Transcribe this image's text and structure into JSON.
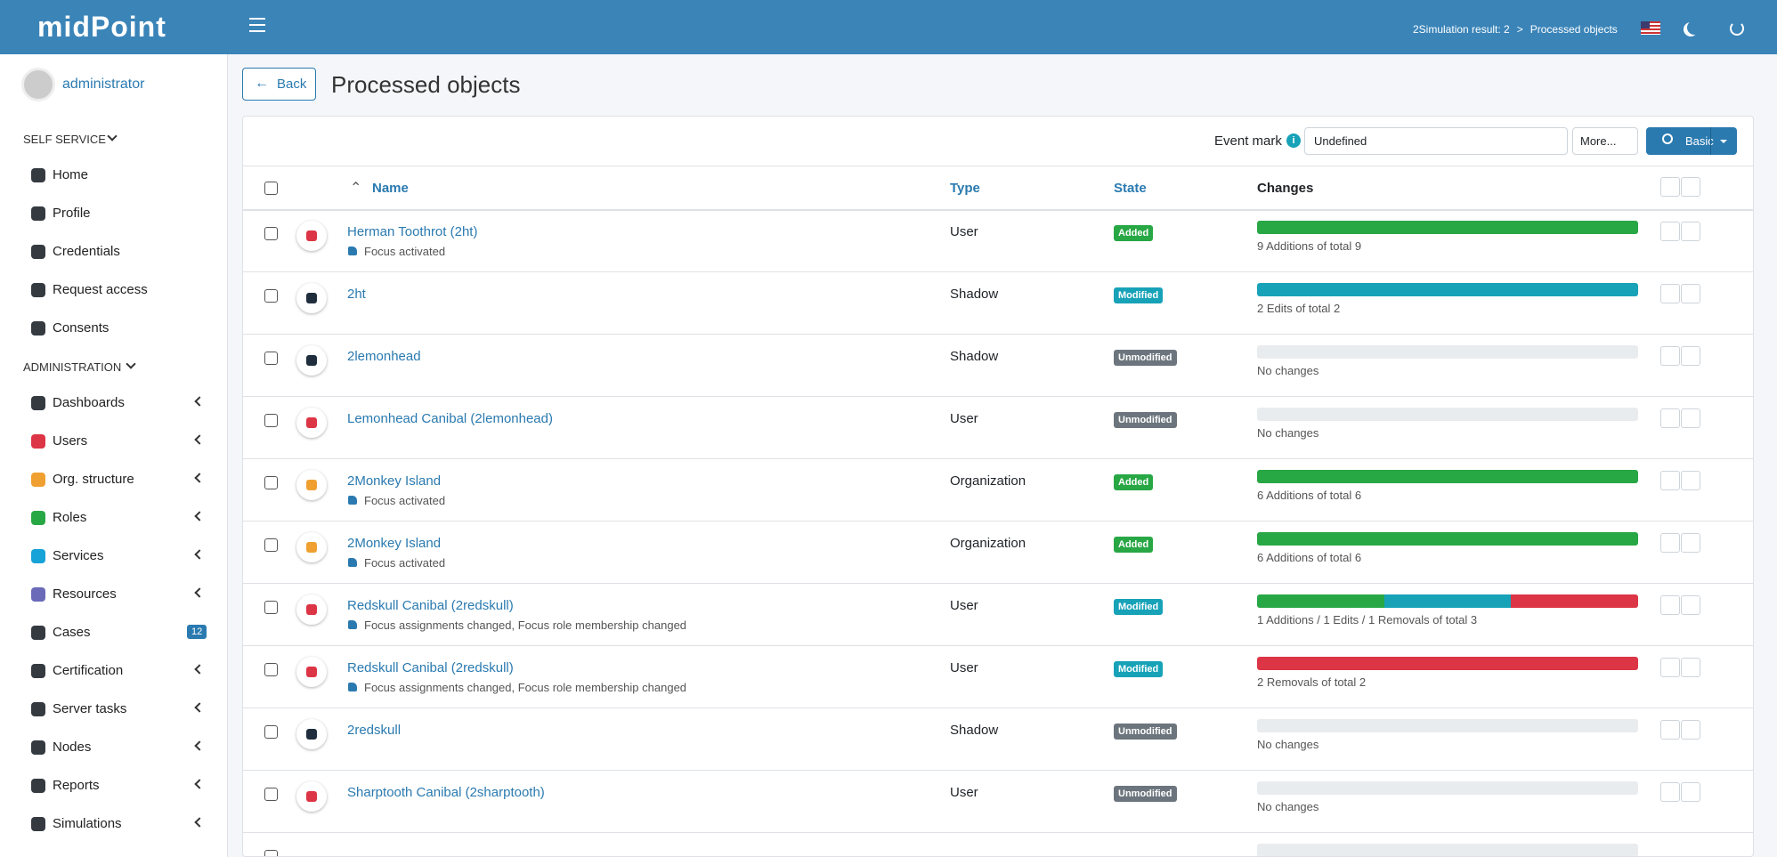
{
  "header": {
    "logo": "midPoint",
    "breadcrumb": {
      "items": [
        "2Simulation result: 2",
        "Processed objects"
      ],
      "separator": ">"
    }
  },
  "sidebar": {
    "user": "administrator",
    "sections": [
      {
        "title": "SELF SERVICE",
        "items": [
          {
            "label": "Home",
            "color": "#343a40"
          },
          {
            "label": "Profile",
            "color": "#343a40"
          },
          {
            "label": "Credentials",
            "color": "#343a40"
          },
          {
            "label": "Request access",
            "color": "#343a40"
          },
          {
            "label": "Consents",
            "color": "#343a40"
          }
        ]
      },
      {
        "title": "ADMINISTRATION",
        "items": [
          {
            "label": "Dashboards",
            "color": "#343a40",
            "expandable": true
          },
          {
            "label": "Users",
            "color": "#dc3545",
            "expandable": true
          },
          {
            "label": "Org. structure",
            "color": "#f0a030",
            "expandable": true
          },
          {
            "label": "Roles",
            "color": "#28a745",
            "expandable": true
          },
          {
            "label": "Services",
            "color": "#17a2d8",
            "expandable": true
          },
          {
            "label": "Resources",
            "color": "#6a6ab8",
            "expandable": true
          },
          {
            "label": "Cases",
            "color": "#343a40",
            "badge": 12
          },
          {
            "label": "Certification",
            "color": "#343a40",
            "expandable": true
          },
          {
            "label": "Server tasks",
            "color": "#343a40",
            "expandable": true
          },
          {
            "label": "Nodes",
            "color": "#343a40",
            "expandable": true
          },
          {
            "label": "Reports",
            "color": "#343a40",
            "expandable": true
          },
          {
            "label": "Simulations",
            "color": "#343a40",
            "expandable": true
          }
        ]
      }
    ]
  },
  "page": {
    "back": "Back",
    "title": "Processed objects"
  },
  "toolbar": {
    "event_mark": "Event mark",
    "select": "Undefined",
    "more": "More...",
    "search": "Basic"
  },
  "table": {
    "columns": [
      "Name",
      "Type",
      "State",
      "Changes"
    ],
    "rows": [
      {
        "name": "Herman Toothrot (2ht)",
        "tags": "Focus activated",
        "type": "User",
        "icon_color": "#dc3545",
        "state": "Added",
        "state_color": "#28a745",
        "changes": {
          "label": "9 Additions of total 9",
          "added": 9,
          "edited": 0,
          "removed": 0
        }
      },
      {
        "name": "2ht",
        "type": "Shadow",
        "icon_color": "#1f2d3d",
        "state": "Modified",
        "state_color": "#17a2b8",
        "changes": {
          "label": "2 Edits of total 2",
          "added": 0,
          "edited": 2,
          "removed": 0
        }
      },
      {
        "name": "2lemonhead",
        "type": "Shadow",
        "icon_color": "#1f2d3d",
        "state": "Unmodified",
        "state_color": "#6c757d",
        "changes": {
          "label": "No changes",
          "added": 0,
          "edited": 0,
          "removed": 0
        }
      },
      {
        "name": "Lemonhead Canibal (2lemonhead)",
        "type": "User",
        "icon_color": "#dc3545",
        "state": "Unmodified",
        "state_color": "#6c757d",
        "changes": {
          "label": "No changes",
          "added": 0,
          "edited": 0,
          "removed": 0
        }
      },
      {
        "name": "2Monkey Island",
        "tags": "Focus activated",
        "type": "Organization",
        "icon_color": "#f0a030",
        "state": "Added",
        "state_color": "#28a745",
        "changes": {
          "label": "6 Additions of total 6",
          "added": 6,
          "edited": 0,
          "removed": 0
        }
      },
      {
        "name": "2Monkey Island",
        "tags": "Focus activated",
        "type": "Organization",
        "icon_color": "#f0a030",
        "state": "Added",
        "state_color": "#28a745",
        "changes": {
          "label": "6 Additions of total 6",
          "added": 6,
          "edited": 0,
          "removed": 0
        }
      },
      {
        "name": "Redskull Canibal (2redskull)",
        "tags": "Focus assignments changed, Focus role membership changed",
        "type": "User",
        "icon_color": "#dc3545",
        "state": "Modified",
        "state_color": "#17a2b8",
        "changes": {
          "label": "1 Additions / 1 Edits / 1 Removals of total 3",
          "added": 1,
          "edited": 1,
          "removed": 1
        }
      },
      {
        "name": "Redskull Canibal (2redskull)",
        "tags": "Focus assignments changed, Focus role membership changed",
        "type": "User",
        "icon_color": "#dc3545",
        "state": "Modified",
        "state_color": "#17a2b8",
        "changes": {
          "label": "2 Removals of total 2",
          "added": 0,
          "edited": 0,
          "removed": 2
        }
      },
      {
        "name": "2redskull",
        "type": "Shadow",
        "icon_color": "#1f2d3d",
        "state": "Unmodified",
        "state_color": "#6c757d",
        "changes": {
          "label": "No changes",
          "added": 0,
          "edited": 0,
          "removed": 0
        }
      },
      {
        "name": "Sharptooth Canibal (2sharptooth)",
        "type": "User",
        "icon_color": "#dc3545",
        "state": "Unmodified",
        "state_color": "#6c757d",
        "changes": {
          "label": "No changes",
          "added": 0,
          "edited": 0,
          "removed": 0
        }
      }
    ]
  }
}
